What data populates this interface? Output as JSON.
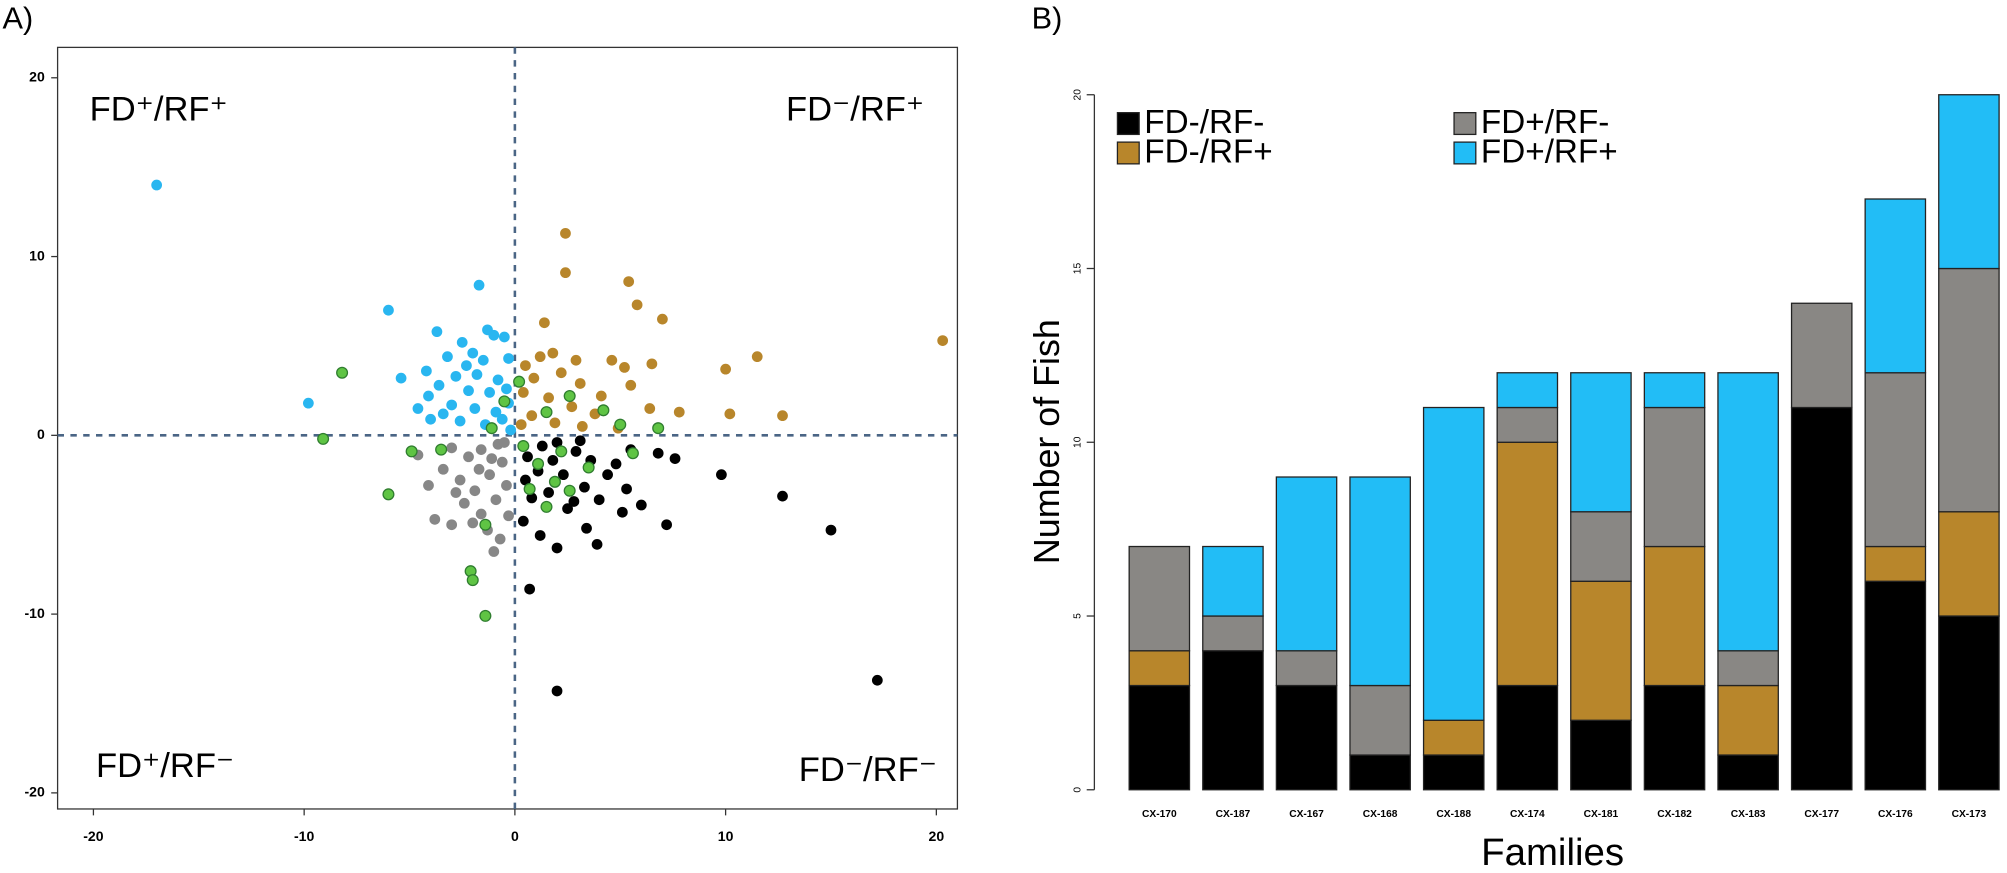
{
  "chart_data": [
    {
      "type": "scatter",
      "panel_label": "A)",
      "xlim": [
        -21.7,
        21.0
      ],
      "ylim": [
        -20.9,
        21.7
      ],
      "xticks": [
        -20,
        -10,
        0,
        10,
        20
      ],
      "yticks": [
        -20,
        -10,
        0,
        10,
        20
      ],
      "reference_lines": {
        "x": [
          0
        ],
        "y": [
          0
        ]
      },
      "annotations": [
        {
          "text": "FD⁺/RF⁺",
          "color": "#29b6f0"
        },
        {
          "text": "FD⁻/RF⁺",
          "color": "#b8862b"
        },
        {
          "text": "FD⁺/RF⁻",
          "color": "#7f7f7f"
        },
        {
          "text": "FD⁻/RF⁻",
          "color": "#000000"
        }
      ],
      "series": [
        {
          "color": "#878787",
          "x": [
            -3.8,
            -3,
            -1,
            -4.1,
            -3.4,
            -2.6,
            -1.9,
            -1.2,
            -0.6,
            -2.2,
            -1.6,
            -0.8,
            -3,
            -2.4,
            -1.6,
            -0.9,
            -0.4,
            -1.3,
            -2,
            -0.3,
            -4.6,
            -1.1,
            -2.8,
            -0.5,
            -1.7,
            -0.7
          ],
          "values": [
            -4.7,
            -5,
            -6.5,
            -2.8,
            -1.9,
            -2.5,
            -3.1,
            -2.2,
            -1.5,
            -1.2,
            -0.8,
            -0.5,
            -0.7,
            -3.8,
            -4.4,
            -3.6,
            -2.8,
            -5.3,
            -4.9,
            -4.5,
            -1.1,
            -1.3,
            -3.2,
            -0.4,
            -1.9,
            -5.8
          ]
        },
        {
          "color": "#000000",
          "x": [
            15,
            12.7,
            9.8,
            7.2,
            2,
            0.7,
            17.2,
            5.5,
            6.8,
            7.6,
            4.8,
            4.4,
            3.6,
            2.9,
            2,
            1.3,
            0.6,
            1.1,
            2.3,
            3.3,
            4,
            5.3,
            6,
            1.6,
            0.8,
            2.5,
            3.4,
            2,
            1.2,
            0.4,
            3.9,
            2.8,
            0.5,
            1.8,
            5.1,
            3.1
          ],
          "values": [
            -5.3,
            -3.4,
            -2.2,
            -5,
            -14.3,
            -8.6,
            -13.7,
            -0.8,
            -1,
            -1.3,
            -1.6,
            -2.2,
            -1.4,
            -0.9,
            -0.4,
            -0.6,
            -1.2,
            -2,
            -2.2,
            -2.9,
            -3.6,
            -3,
            -3.9,
            -3.2,
            -3.5,
            -4.1,
            -5.2,
            -6.3,
            -5.6,
            -4.8,
            -6.1,
            -3.7,
            -2.5,
            -1.4,
            -4.3,
            -0.3
          ]
        },
        {
          "color": "#29b6f0",
          "x": [
            -17,
            -9.8,
            -6,
            -1.7,
            -3.7,
            -1.3,
            -1,
            -2.5,
            -0.5,
            -3.2,
            -4.2,
            -2,
            -1.5,
            -0.3,
            -3.6,
            -2.8,
            -1.8,
            -0.8,
            -4.1,
            -2.2,
            -1.2,
            -0.4,
            -3,
            -1.9,
            -0.9,
            -0.3,
            -4,
            -2.6,
            -1.4,
            -0.6,
            -3.4,
            -2.3,
            -0.2,
            -5.4,
            -4.6
          ],
          "values": [
            14,
            1.8,
            7,
            8.4,
            5.8,
            5.9,
            5.6,
            5.2,
            5.5,
            4.4,
            3.6,
            4.6,
            4.2,
            4.3,
            2.8,
            3.3,
            3.4,
            3.1,
            2.2,
            2.5,
            2.4,
            2.6,
            1.7,
            1.5,
            1.3,
            1.8,
            0.9,
            0.8,
            0.6,
            0.9,
            1.2,
            3.9,
            0.3,
            3.2,
            1.5
          ]
        },
        {
          "color": "#b8862b",
          "x": [
            2.4,
            2.4,
            5.4,
            5.8,
            7,
            20.3,
            11.5,
            10,
            10.2,
            12.7,
            6.5,
            1.4,
            1.8,
            1.2,
            4.6,
            5.2,
            0.5,
            0.9,
            2.2,
            3.1,
            4.1,
            5.5,
            0.4,
            1.6,
            2.7,
            3.8,
            6.4,
            0.8,
            1.9,
            3.2,
            0.3,
            4.9,
            2.9,
            7.8
          ],
          "values": [
            11.3,
            9.1,
            8.6,
            7.3,
            6.5,
            5.3,
            4.4,
            3.7,
            1.2,
            1.1,
            4,
            6.3,
            4.6,
            4.4,
            4.2,
            3.8,
            3.9,
            3.2,
            3.5,
            2.9,
            2.2,
            2.8,
            2.4,
            2.1,
            1.6,
            1.2,
            1.5,
            1.1,
            0.7,
            0.5,
            0.6,
            0.4,
            4.2,
            1.3
          ]
        },
        {
          "color": "#5fc444",
          "x": [
            -9.1,
            -8.2,
            -6,
            -2.1,
            -2,
            -1.4,
            -1.4,
            -4.9,
            -3.5,
            6.8,
            5.6,
            5,
            4.2,
            2.6,
            1.5,
            0.4,
            1.1,
            1.9,
            2.6,
            0.7,
            1.5,
            2.2,
            -0.5,
            -1.1,
            0.2,
            3.5
          ],
          "values": [
            -0.2,
            3.5,
            -3.3,
            -7.6,
            -8.1,
            -10.1,
            -5,
            -0.9,
            -0.8,
            0.4,
            -1,
            0.6,
            1.4,
            2.2,
            1.3,
            -0.6,
            -1.6,
            -2.6,
            -3.1,
            -3,
            -4,
            -0.9,
            1.9,
            0.4,
            3,
            -1.8
          ]
        }
      ]
    },
    {
      "type": "bar",
      "stacked": true,
      "panel_label": "B)",
      "x_label": "Families",
      "y_label": "Number of Fish",
      "categories": [
        "CX-170",
        "CX-187",
        "CX-167",
        "CX-168",
        "CX-188",
        "CX-174",
        "CX-181",
        "CX-182",
        "CX-183",
        "CX-177",
        "CX-176",
        "CX-173"
      ],
      "ylim": [
        0,
        20
      ],
      "yticks": [
        0,
        5,
        10,
        15,
        20
      ],
      "legend": "top-left",
      "series": [
        {
          "name": "FD-/RF-",
          "color": "#000000",
          "values": [
            3,
            4,
            3,
            1,
            1,
            3,
            2,
            3,
            1,
            11,
            6,
            5
          ]
        },
        {
          "name": "FD-/RF+",
          "color": "#b8862b",
          "values": [
            1,
            0,
            0,
            0,
            1,
            7,
            4,
            4,
            2,
            0,
            1,
            3
          ]
        },
        {
          "name": "FD+/RF-",
          "color": "#898784",
          "values": [
            3,
            1,
            1,
            2,
            0,
            1,
            2,
            4,
            1,
            3,
            5,
            7
          ]
        },
        {
          "name": "FD+/RF+",
          "color": "#22bdf6",
          "values": [
            0,
            2,
            5,
            6,
            9,
            1,
            4,
            1,
            8,
            0,
            5,
            5
          ]
        }
      ]
    }
  ]
}
